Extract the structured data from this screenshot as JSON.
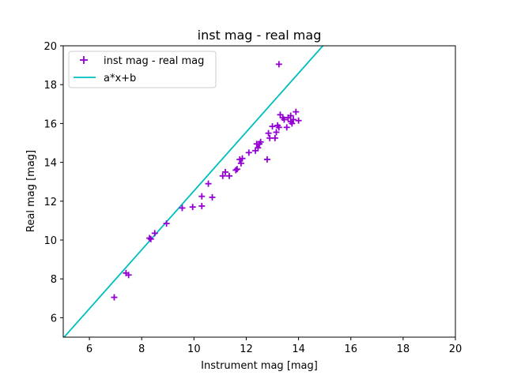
{
  "chart_data": {
    "type": "scatter",
    "title": "inst mag - real mag",
    "xlabel": "Instrument mag [mag]",
    "ylabel": "Real mag [mag]",
    "xlim": [
      5,
      20
    ],
    "ylim": [
      5,
      20
    ],
    "xticks": [
      6,
      8,
      10,
      12,
      14,
      16,
      18,
      20
    ],
    "yticks": [
      6,
      8,
      10,
      12,
      14,
      16,
      18,
      20
    ],
    "grid": false,
    "legend_position": "top-left",
    "series": [
      {
        "name": "inst mag - real mag",
        "kind": "scatter",
        "marker": "plus",
        "color": "#9400d3",
        "points": [
          [
            6.95,
            7.05
          ],
          [
            7.4,
            8.3
          ],
          [
            7.5,
            8.2
          ],
          [
            8.3,
            10.1
          ],
          [
            8.35,
            10.05
          ],
          [
            8.5,
            10.35
          ],
          [
            8.95,
            10.85
          ],
          [
            9.55,
            11.65
          ],
          [
            9.95,
            11.7
          ],
          [
            10.3,
            11.75
          ],
          [
            10.3,
            12.25
          ],
          [
            10.55,
            12.9
          ],
          [
            10.7,
            12.2
          ],
          [
            11.1,
            13.3
          ],
          [
            11.2,
            13.5
          ],
          [
            11.35,
            13.3
          ],
          [
            11.6,
            13.6
          ],
          [
            11.65,
            13.65
          ],
          [
            11.75,
            14.15
          ],
          [
            11.8,
            13.95
          ],
          [
            11.85,
            14.2
          ],
          [
            12.1,
            14.5
          ],
          [
            12.35,
            14.6
          ],
          [
            12.4,
            14.95
          ],
          [
            12.45,
            14.75
          ],
          [
            12.5,
            14.95
          ],
          [
            12.55,
            15.05
          ],
          [
            12.8,
            14.15
          ],
          [
            12.85,
            15.5
          ],
          [
            12.9,
            15.25
          ],
          [
            13.0,
            15.85
          ],
          [
            13.1,
            15.25
          ],
          [
            13.15,
            15.55
          ],
          [
            13.2,
            15.9
          ],
          [
            13.25,
            15.8
          ],
          [
            13.25,
            19.05
          ],
          [
            13.3,
            16.45
          ],
          [
            13.4,
            16.3
          ],
          [
            13.45,
            16.2
          ],
          [
            13.55,
            15.8
          ],
          [
            13.6,
            16.3
          ],
          [
            13.7,
            16.1
          ],
          [
            13.7,
            16.4
          ],
          [
            13.75,
            16.0
          ],
          [
            13.8,
            16.2
          ],
          [
            13.9,
            16.6
          ],
          [
            14.0,
            16.15
          ]
        ]
      },
      {
        "name": "a*x+b",
        "kind": "line",
        "color": "#00bfbf",
        "x": [
          5.0,
          14.93
        ],
        "y": [
          4.95,
          20.0
        ]
      }
    ]
  }
}
